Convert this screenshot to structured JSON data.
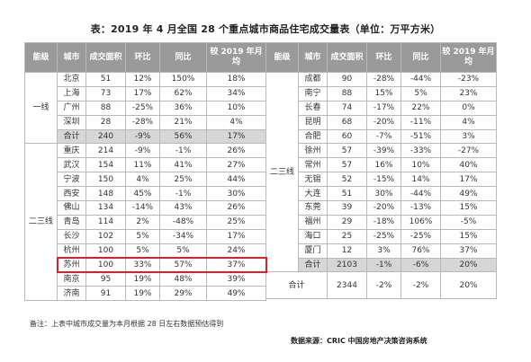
{
  "title": "表：2019 年 4 月全国 28 个重点城市商品住宅成交量表（单位：万平方米）",
  "headers": [
    "能级",
    "城市",
    "成交面积",
    "环比",
    "同比",
    "较 2019 年月均"
  ],
  "left_table": {
    "groups": [
      {
        "tier": "一线",
        "rows": [
          [
            "北京",
            "51",
            "12%",
            "150%",
            "18%"
          ],
          [
            "上海",
            "73",
            "17%",
            "62%",
            "34%"
          ],
          [
            "广州",
            "88",
            "-25%",
            "36%",
            "10%"
          ],
          [
            "深圳",
            "28",
            "-28%",
            "21%",
            "4%"
          ]
        ],
        "subtotal": [
          "合计",
          "240",
          "-9%",
          "56%",
          "17%"
        ]
      },
      {
        "tier": "二三线",
        "rows": [
          [
            "重庆",
            "214",
            "-9%",
            "-1%",
            "26%"
          ],
          [
            "武汉",
            "154",
            "11%",
            "41%",
            "27%"
          ],
          [
            "宁波",
            "150",
            "4%",
            "25%",
            "44%"
          ],
          [
            "西安",
            "148",
            "45%",
            "-1%",
            "30%"
          ],
          [
            "佛山",
            "134",
            "-14%",
            "43%",
            "26%"
          ],
          [
            "青岛",
            "114",
            "2%",
            "-48%",
            "25%"
          ],
          [
            "长沙",
            "102",
            "5%",
            "-34%",
            "17%"
          ],
          [
            "杭州",
            "100",
            "5%",
            "5%",
            "24%"
          ],
          [
            "苏州",
            "100",
            "33%",
            "57%",
            "37%"
          ],
          [
            "南京",
            "95",
            "19%",
            "48%",
            "39%"
          ],
          [
            "济南",
            "91",
            "19%",
            "29%",
            "49%"
          ]
        ]
      }
    ]
  },
  "right_table": {
    "tier": "二三线",
    "rows": [
      [
        "成都",
        "90",
        "-28%",
        "-44%",
        "-23%"
      ],
      [
        "南宁",
        "88",
        "15%",
        "5%",
        "23%"
      ],
      [
        "长春",
        "74",
        "-17%",
        "22%",
        "0%"
      ],
      [
        "昆明",
        "68",
        "-20%",
        "-11%",
        "4%"
      ],
      [
        "合肥",
        "60",
        "-7%",
        "-51%",
        "3%"
      ],
      [
        "徐州",
        "57",
        "-39%",
        "-33%",
        "-27%"
      ],
      [
        "常州",
        "57",
        "16%",
        "10%",
        "40%"
      ],
      [
        "无锡",
        "52",
        "-15%",
        "14%",
        "17%"
      ],
      [
        "大连",
        "51",
        "30%",
        "-44%",
        "49%"
      ],
      [
        "东莞",
        "39",
        "-20%",
        "-13%",
        "15%"
      ],
      [
        "福州",
        "29",
        "-18%",
        "106%",
        "-5%"
      ],
      [
        "海口",
        "25",
        "-25%",
        "-25%",
        "15%"
      ],
      [
        "厦门",
        "12",
        "3%",
        "76%",
        "37%"
      ]
    ],
    "subtotal": [
      "合计",
      "2103",
      "-1%",
      "-6%",
      "20%"
    ],
    "grand_total": {
      "label": "合计",
      "values": [
        "2344",
        "-2%",
        "-2%",
        "20%"
      ]
    }
  },
  "highlight_city": "苏州",
  "note": "备注：上表中城市成交量为本月根据 28 日左右数据预估得到",
  "source": "数据来源：CRIC 中国房地产决策咨询系统",
  "colors": {
    "header_bg": "#9a9a9a",
    "subtotal_bg": "#d6d6d6",
    "highlight_border": "#e02020"
  }
}
